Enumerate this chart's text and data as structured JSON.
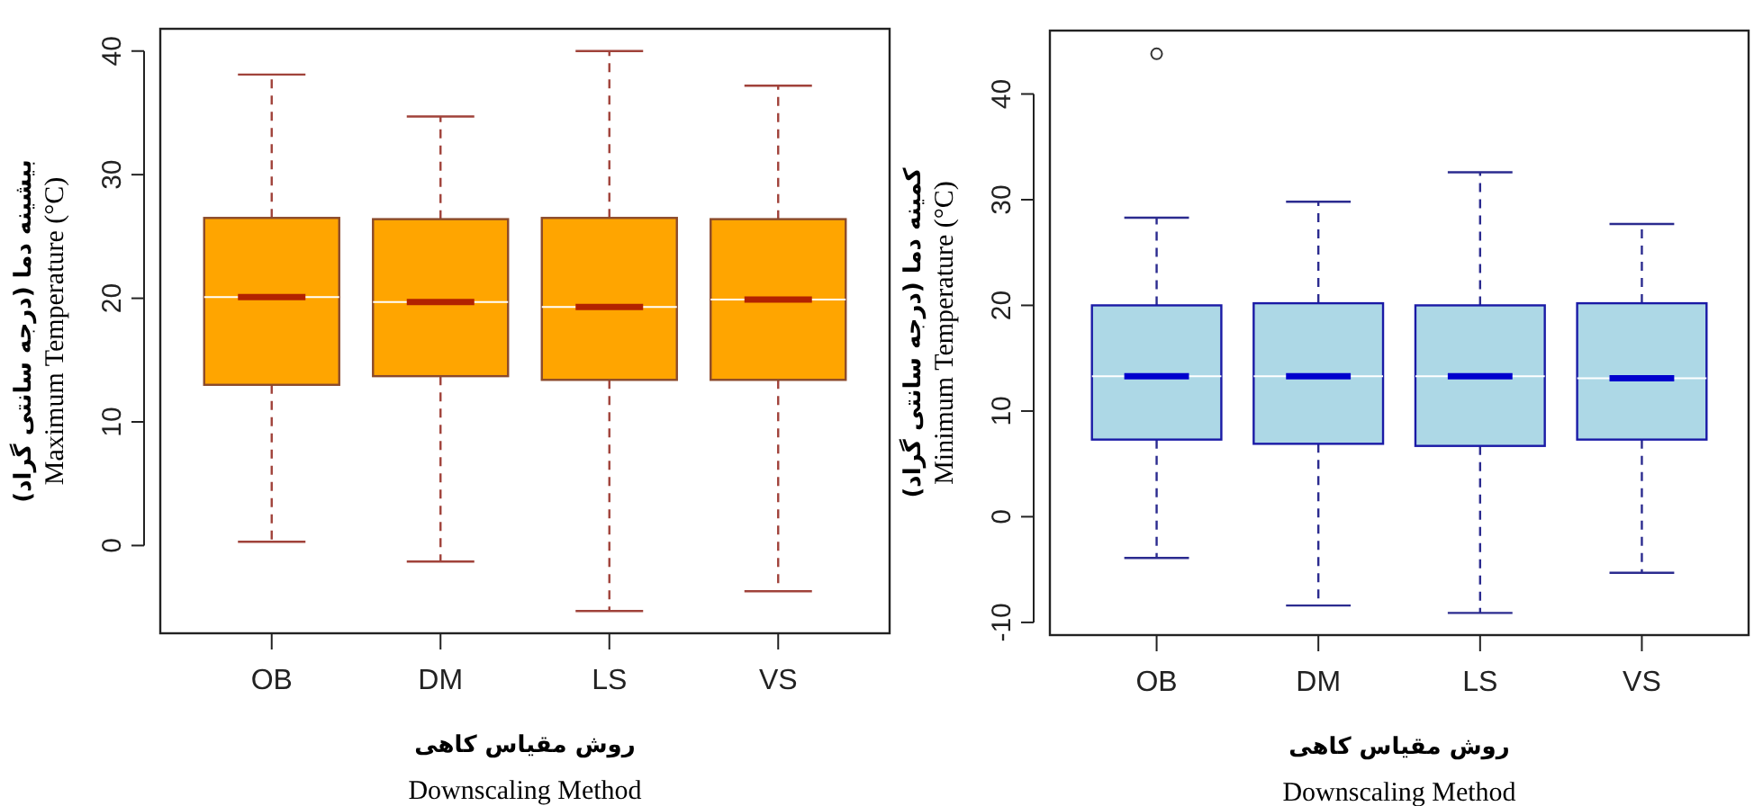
{
  "chart_data": [
    {
      "type": "box",
      "xlabel": "روش مقیاس کاهی\nDownscaling Method",
      "ylabel": "بیشینه دما (درجه سانتی گراد)\nMaximum Temperature (°C)",
      "categories": [
        "OB",
        "DM",
        "LS",
        "VS"
      ],
      "ylim": [
        -7.1,
        41.8
      ],
      "yticks": [
        0,
        10,
        20,
        30,
        40
      ],
      "series": [
        {
          "color": "#ffa500",
          "boxes": [
            {
              "low": 0.3,
              "q1": 13.0,
              "median": 20.1,
              "q3": 26.5,
              "high": 38.1
            },
            {
              "low": -1.3,
              "q1": 13.7,
              "median": 19.7,
              "q3": 26.4,
              "high": 34.7
            },
            {
              "low": -5.3,
              "q1": 13.4,
              "median": 19.3,
              "q3": 26.5,
              "high": 40.0
            },
            {
              "low": -3.7,
              "q1": 13.4,
              "median": 19.9,
              "q3": 26.4,
              "high": 37.2
            }
          ]
        }
      ]
    },
    {
      "type": "box",
      "xlabel": "روش مقیاس کاهی\nDownscaling Method",
      "ylabel": "کمینه دما (درجه سانتی گراد)\nMinimum Temperature (°C)",
      "categories": [
        "OB",
        "DM",
        "LS",
        "VS"
      ],
      "ylim": [
        -11.2,
        46.0
      ],
      "yticks": [
        -10,
        0,
        10,
        20,
        30,
        40
      ],
      "series": [
        {
          "color": "#add8e6",
          "boxes": [
            {
              "low": -3.9,
              "q1": 7.3,
              "median": 13.3,
              "q3": 20.0,
              "high": 28.3,
              "outliers": [
                43.8
              ]
            },
            {
              "low": -8.4,
              "q1": 6.9,
              "median": 13.3,
              "q3": 20.2,
              "high": 29.8
            },
            {
              "low": -9.1,
              "q1": 6.7,
              "median": 13.3,
              "q3": 20.0,
              "high": 32.6
            },
            {
              "low": -5.3,
              "q1": 7.3,
              "median": 13.1,
              "q3": 20.2,
              "high": 27.7
            }
          ]
        }
      ]
    }
  ]
}
